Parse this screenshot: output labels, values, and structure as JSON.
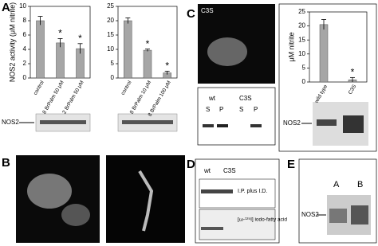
{
  "chart_data": [
    {
      "type": "bar",
      "y_label": "NOS2 activity (μM nitrite)",
      "categories": [
        "control",
        "8 BrPalm 50 μM",
        "2 BrPalm 50 μM"
      ],
      "values": [
        8.0,
        4.9,
        4.1
      ],
      "errors": [
        0.6,
        0.6,
        0.7
      ],
      "significance": [
        null,
        "*",
        "*"
      ],
      "color": "#a6a6a6",
      "ylim": [
        0,
        10
      ],
      "yticks": [
        0,
        2,
        4,
        6,
        8,
        10
      ]
    },
    {
      "type": "bar",
      "categories": [
        "control",
        "8 BrPalm 10 μM",
        "8 BrPalm 100 μM"
      ],
      "values": [
        20,
        9.7,
        1.8
      ],
      "errors": [
        1.0,
        0.4,
        0.6
      ],
      "significance": [
        null,
        "*",
        "*"
      ],
      "color": "#a6a6a6",
      "ylim": [
        0,
        25
      ],
      "yticks": [
        0,
        5,
        10,
        15,
        20,
        25
      ]
    },
    {
      "type": "bar",
      "y_label": "μM nitrite",
      "categories": [
        "wild type",
        "C3S"
      ],
      "values": [
        20.5,
        0.8
      ],
      "errors": [
        1.8,
        0.8
      ],
      "significance": [
        null,
        "*"
      ],
      "color": "#a6a6a6",
      "ylim": [
        0,
        25
      ],
      "yticks": [
        0,
        5,
        10,
        15,
        20,
        25
      ]
    }
  ],
  "panels": {
    "a": {
      "label": "A",
      "blot_label": "NOS2"
    },
    "b": {
      "label": "B"
    },
    "c": {
      "label": "C",
      "image_label": "C3S",
      "lanes": [
        "wt",
        "C3S"
      ],
      "fractions": [
        "S",
        "P",
        "S",
        "P"
      ],
      "blot_label": "NOS2"
    },
    "d": {
      "label": "D",
      "lanes": [
        "wt",
        "C3S"
      ],
      "row1": "I.P. plus I.D.",
      "row2": "[ω-¹²⁵I] iodo-fatty acid"
    },
    "e": {
      "label": "E",
      "lanes": [
        "A",
        "B"
      ],
      "blot_label": "NOS2"
    }
  }
}
